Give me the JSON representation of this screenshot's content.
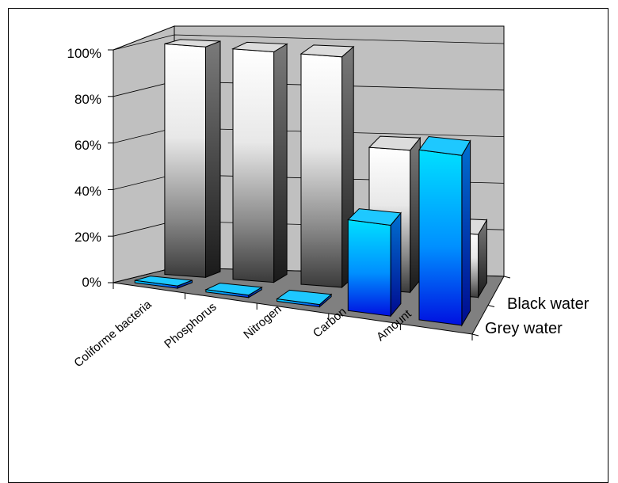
{
  "chart_data": {
    "type": "bar",
    "title": "",
    "xlabel": "",
    "ylabel": "",
    "ylim": [
      0,
      100
    ],
    "y_tick_labels": [
      "0%",
      "20%",
      "40%",
      "60%",
      "80%",
      "100%"
    ],
    "categories": [
      "Coliforme bacteria",
      "Phosphorus",
      "Nitrogen",
      "Carbon",
      "Amount"
    ],
    "series": [
      {
        "name": "Grey water",
        "values": [
          1,
          1,
          1,
          39,
          73
        ]
      },
      {
        "name": "Black water",
        "values": [
          99,
          99,
          99,
          61,
          27
        ]
      }
    ],
    "grid": true,
    "colors": {
      "grey_water": "#00bfff",
      "black_water": "#ffffff",
      "walls": "#c0c0c0",
      "floor": "#808080"
    }
  }
}
